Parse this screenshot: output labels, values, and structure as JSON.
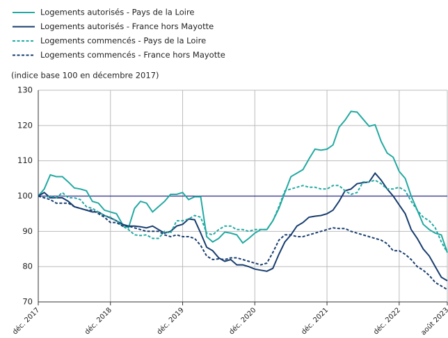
{
  "chart_data": {
    "type": "line",
    "y_axis_label": "(indice base 100 en décembre 2017)",
    "categories": [
      "déc. 2017",
      null,
      null,
      null,
      null,
      null,
      null,
      null,
      null,
      null,
      null,
      null,
      "déc. 2018",
      null,
      null,
      null,
      null,
      null,
      null,
      null,
      null,
      null,
      null,
      null,
      "déc. 2019",
      null,
      null,
      null,
      null,
      null,
      null,
      null,
      null,
      null,
      null,
      null,
      "déc. 2020",
      null,
      null,
      null,
      null,
      null,
      null,
      null,
      null,
      null,
      null,
      null,
      "déc. 2021",
      null,
      null,
      null,
      null,
      null,
      null,
      null,
      null,
      null,
      null,
      null,
      "déc. 2022",
      null,
      null,
      null,
      null,
      null,
      null,
      null,
      "août 2023"
    ],
    "ylim": [
      70,
      130
    ],
    "yticks": [
      70,
      80,
      90,
      100,
      110,
      120,
      130
    ],
    "grid": true,
    "reference_line": 100,
    "reference_color": "#2b2b8a",
    "series": [
      {
        "name": "Logements autorisés - Pays de la Loire",
        "color": "#22a9a1",
        "dashed": false,
        "values": [
          100,
          102,
          106,
          105.5,
          105.5,
          104,
          102.3,
          102,
          101.5,
          98.5,
          98,
          96,
          95.5,
          95,
          92,
          91,
          96.5,
          98.5,
          98,
          95.5,
          97,
          98.5,
          100.5,
          100.5,
          101,
          99,
          99.8,
          99.8,
          88.5,
          87,
          88,
          89.8,
          89.5,
          89,
          86.7,
          88,
          89.5,
          90.5,
          90.5,
          93,
          96.5,
          101,
          105.5,
          106.5,
          107.5,
          110.5,
          113.3,
          113,
          113.3,
          114.5,
          119.5,
          121.5,
          124,
          123.8,
          121.8,
          119.8,
          120.2,
          115.5,
          112.2,
          111,
          107,
          105,
          100,
          96,
          92,
          90.5,
          89.5,
          89,
          84
        ]
      },
      {
        "name": "Logements autorisés - France hors Mayotte",
        "color": "#173c6e",
        "dashed": false,
        "values": [
          100,
          101,
          99.5,
          99.5,
          99.5,
          98.5,
          97,
          96.5,
          96,
          95.5,
          95.5,
          94.5,
          93.8,
          93,
          92,
          91.5,
          91.5,
          91.3,
          91,
          91.5,
          90.5,
          89.5,
          90,
          91.5,
          92,
          93.5,
          93.3,
          89.5,
          85.5,
          84.5,
          82.5,
          81.5,
          82,
          80.5,
          80.5,
          80,
          79.3,
          79,
          78.7,
          79.5,
          83.5,
          87,
          89,
          91.5,
          92.5,
          94,
          94.3,
          94.5,
          95,
          96,
          98.5,
          101.5,
          102,
          103.5,
          103.8,
          104,
          106.5,
          104.5,
          102,
          100,
          97.5,
          95,
          90.5,
          88,
          85,
          83,
          80,
          77,
          76
        ]
      },
      {
        "name": "Logements commencés - Pays de la Loire",
        "color": "#22a9a1",
        "dashed": true,
        "values": [
          100,
          99.5,
          100,
          99.5,
          101,
          99.5,
          99.5,
          99,
          97,
          96.5,
          95.5,
          94.5,
          94,
          93,
          91.5,
          90.5,
          89,
          88.8,
          89,
          88,
          88,
          90,
          89.5,
          93,
          93,
          93.5,
          94.5,
          94,
          89.5,
          89,
          90.5,
          91.5,
          91.5,
          90.5,
          90.5,
          90,
          90.5,
          90.5,
          90.5,
          93,
          97,
          101.5,
          102,
          102.5,
          103,
          102.5,
          102.5,
          102,
          102,
          103,
          103,
          101.5,
          100.5,
          101,
          104,
          104,
          104.5,
          103.5,
          102,
          102,
          102.5,
          101.5,
          98.5,
          96,
          94,
          93,
          91,
          87,
          84
        ]
      },
      {
        "name": "Logements commencés - France hors Mayotte",
        "color": "#173c6e",
        "dashed": true,
        "values": [
          100,
          99.5,
          99,
          98,
          98,
          98,
          97,
          96.5,
          96,
          96,
          95,
          94,
          92.5,
          92.5,
          91.5,
          91.5,
          91,
          90.5,
          90,
          90,
          90,
          89,
          88.5,
          89,
          88.5,
          88.5,
          88,
          86,
          83,
          82,
          82.2,
          82,
          82.5,
          82.5,
          82,
          81.5,
          81,
          80.5,
          81,
          84,
          87.5,
          89,
          89,
          88.5,
          88.5,
          89,
          89.5,
          90,
          90.5,
          91,
          90.8,
          90.8,
          90,
          89.5,
          89,
          88.5,
          88,
          87.5,
          86.5,
          84.5,
          84.5,
          83.5,
          82,
          80,
          79,
          77.5,
          75.5,
          74.5,
          73.5
        ]
      }
    ]
  }
}
